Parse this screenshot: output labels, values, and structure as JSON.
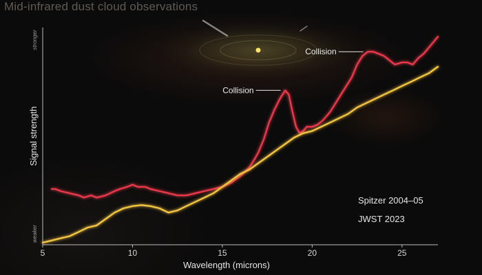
{
  "chart_data": {
    "type": "line",
    "title": "Mid-infrared dust cloud observations",
    "xlabel": "Wavelength (microns)",
    "ylabel": "Signal strength",
    "y_top_label": "stronger",
    "y_bottom_label": "weaker",
    "xlim": [
      5,
      27
    ],
    "ylim": [
      0,
      100
    ],
    "x_ticks": [
      5,
      10,
      15,
      20,
      25
    ],
    "grid": false,
    "legend_position": "bottom-right",
    "series": [
      {
        "name": "Spitzer 2004–05",
        "color": "#e8384a",
        "x": [
          5.5,
          5.7,
          6.0,
          6.5,
          7.0,
          7.3,
          7.7,
          8.0,
          8.5,
          9.0,
          9.3,
          9.7,
          10.0,
          10.3,
          10.7,
          11.0,
          11.5,
          12.0,
          12.5,
          13.0,
          13.5,
          14.0,
          14.5,
          15.0,
          15.5,
          16.0,
          16.5,
          16.8,
          17.0,
          17.3,
          17.6,
          17.9,
          18.2,
          18.5,
          18.7,
          18.9,
          19.1,
          19.3,
          19.5,
          19.7,
          20.0,
          20.3,
          20.6,
          21.0,
          21.3,
          21.6,
          21.9,
          22.2,
          22.5,
          22.8,
          23.1,
          23.4,
          23.7,
          24.0,
          24.3,
          24.6,
          25.0,
          25.3,
          25.6,
          25.9,
          26.2,
          26.5,
          26.8,
          27.0
        ],
        "values": [
          26,
          26,
          25,
          24,
          23,
          22,
          23,
          22,
          23,
          25,
          26,
          27,
          28,
          27,
          27,
          26,
          25,
          24,
          23,
          23,
          24,
          25,
          26,
          27,
          29,
          32,
          36,
          40,
          43,
          49,
          57,
          63,
          68,
          72,
          70,
          62,
          55,
          52,
          53,
          55,
          55,
          56,
          58,
          62,
          66,
          70,
          74,
          78,
          84,
          88,
          90,
          90,
          89,
          88,
          86,
          84,
          85,
          85,
          84,
          87,
          89,
          92,
          95,
          97
        ]
      },
      {
        "name": "JWST 2023",
        "color": "#f3c443",
        "x": [
          5.0,
          5.5,
          6.0,
          6.5,
          7.0,
          7.5,
          8.0,
          8.5,
          9.0,
          9.5,
          10.0,
          10.5,
          11.0,
          11.5,
          12.0,
          12.5,
          13.0,
          13.5,
          14.0,
          14.5,
          15.0,
          15.5,
          16.0,
          16.5,
          17.0,
          17.5,
          18.0,
          18.5,
          19.0,
          19.5,
          20.0,
          20.5,
          21.0,
          21.5,
          22.0,
          22.5,
          23.0,
          23.5,
          24.0,
          24.5,
          25.0,
          25.5,
          26.0,
          26.5,
          27.0
        ],
        "values": [
          1,
          2,
          3,
          4,
          6,
          8,
          9,
          12,
          15,
          17,
          18,
          18.5,
          18,
          17,
          15,
          16,
          18,
          20,
          22,
          24,
          27,
          30,
          33,
          35,
          38,
          41,
          44,
          47,
          50,
          52,
          53,
          55,
          57,
          59,
          61,
          64,
          66,
          68,
          70,
          72,
          74,
          76,
          78,
          80,
          83
        ]
      }
    ],
    "annotations": [
      {
        "text": "Collision",
        "x": 18.4,
        "y": 72
      },
      {
        "text": "Collision",
        "x": 23.0,
        "y": 90
      }
    ]
  }
}
